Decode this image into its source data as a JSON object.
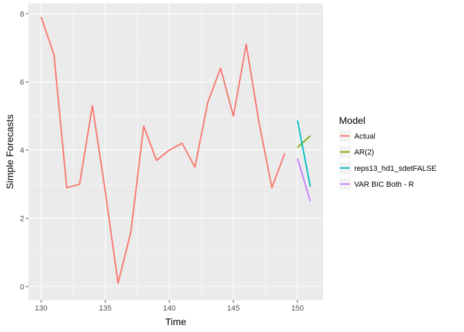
{
  "chart_data": {
    "type": "line",
    "xlabel": "Time",
    "ylabel": "Simple Forecasts",
    "xlim": [
      129,
      152
    ],
    "ylim": [
      -0.4,
      8.3
    ],
    "x_ticks": [
      130,
      135,
      140,
      145,
      150
    ],
    "y_ticks": [
      0,
      2,
      4,
      6,
      8
    ],
    "grid": true,
    "legend": {
      "title": "Model",
      "placement": "right"
    },
    "series": [
      {
        "name": "Actual",
        "color": "#F8766D",
        "x": [
          130,
          131,
          132,
          133,
          134,
          135,
          136,
          137,
          138,
          139,
          140,
          141,
          142,
          143,
          144,
          145,
          146,
          147,
          148,
          149
        ],
        "y": [
          7.9,
          6.8,
          2.9,
          3.0,
          5.3,
          2.8,
          0.1,
          1.6,
          4.7,
          3.7,
          4.0,
          4.2,
          3.5,
          5.4,
          6.4,
          5.0,
          7.1,
          4.8,
          2.9,
          3.9
        ]
      },
      {
        "name": "AR(2)",
        "color": "#7CAE00",
        "x": [
          150,
          151
        ],
        "y": [
          4.08,
          4.42
        ]
      },
      {
        "name": "reps13_hd1_sdetFALSE",
        "color": "#00BFC4",
        "x": [
          150,
          151
        ],
        "y": [
          4.87,
          2.93
        ]
      },
      {
        "name": "VAR BIC Both - R",
        "color": "#C77CFF",
        "x": [
          150,
          151
        ],
        "y": [
          3.75,
          2.5
        ]
      }
    ]
  }
}
